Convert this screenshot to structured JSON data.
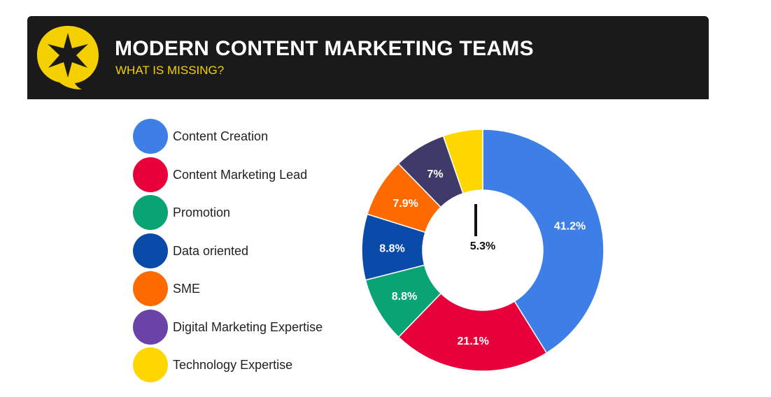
{
  "header": {
    "title": "MODERN CONTENT MARKETING TEAMS",
    "subtitle": "WHAT IS MISSING?",
    "logo_icon": "star-speech-bubble-icon",
    "background_color": "#1a1a1a",
    "logo_color": "#f5d000",
    "subtitle_color": "#f5d000"
  },
  "chart_data": {
    "type": "pie",
    "donut": true,
    "title": "",
    "legend_position": "left",
    "slices": [
      {
        "label": "Content Creation",
        "value": 41.2,
        "display": "41.2%",
        "color": "#3d7fe6"
      },
      {
        "label": "Content Marketing Lead",
        "value": 21.1,
        "display": "21.1%",
        "color": "#e8003a"
      },
      {
        "label": "Promotion",
        "value": 8.8,
        "display": "8.8%",
        "color": "#0aa374"
      },
      {
        "label": "Data oriented",
        "value": 8.8,
        "display": "8.8%",
        "color": "#0a4aa8"
      },
      {
        "label": "SME",
        "value": 7.9,
        "display": "7.9%",
        "color": "#ff6a00"
      },
      {
        "label": "Digital Marketing Expertise",
        "value": 7.0,
        "display": "7%",
        "color": "#3f3a6a"
      },
      {
        "label": "Technology Expertise",
        "value": 5.3,
        "display": "5.3%",
        "color": "#ffd600"
      }
    ],
    "legend_colors": [
      "#3d7fe6",
      "#e8003a",
      "#0aa374",
      "#0a4aa8",
      "#ff6a00",
      "#6a42a8",
      "#ffd600"
    ]
  }
}
